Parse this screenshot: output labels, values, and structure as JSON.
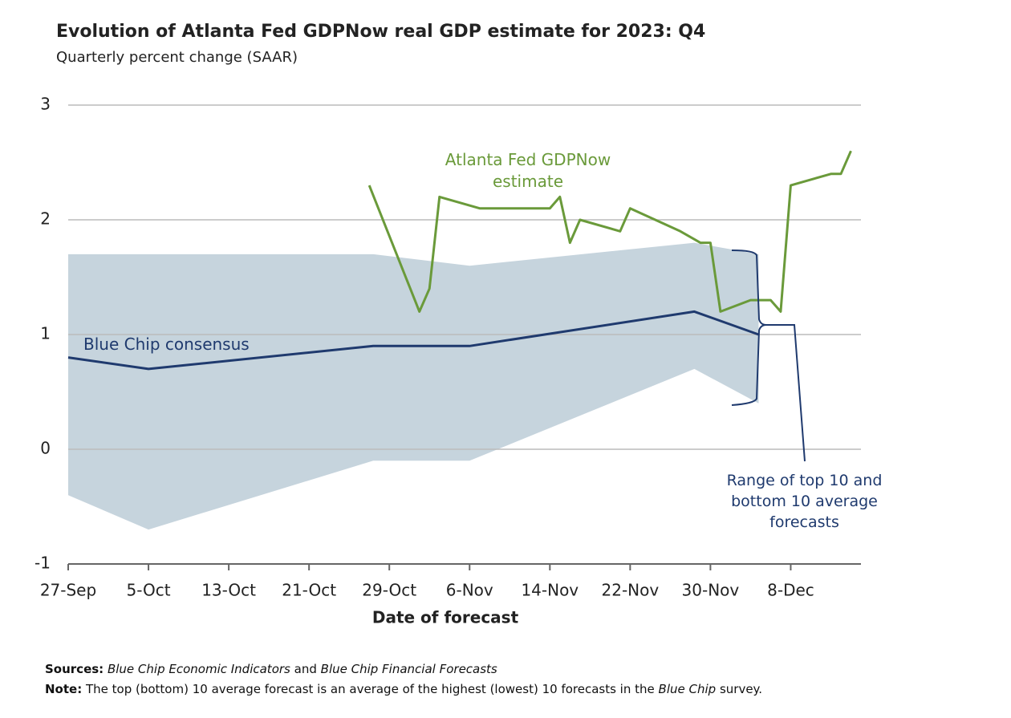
{
  "chart_data": {
    "type": "line",
    "title": "Evolution of Atlanta Fed GDPNow real GDP estimate for 2023: Q4",
    "subtitle": "Quarterly percent change (SAAR)",
    "x_label": "Date of forecast",
    "xlim": [
      0,
      79
    ],
    "xticks": [
      {
        "value": 0,
        "label": "27-Sep"
      },
      {
        "value": 8,
        "label": "5-Oct"
      },
      {
        "value": 16,
        "label": "13-Oct"
      },
      {
        "value": 24,
        "label": "21-Oct"
      },
      {
        "value": 32,
        "label": "29-Oct"
      },
      {
        "value": 40,
        "label": "6-Nov"
      },
      {
        "value": 48,
        "label": "14-Nov"
      },
      {
        "value": 56,
        "label": "22-Nov"
      },
      {
        "value": 64,
        "label": "30-Nov"
      },
      {
        "value": 72,
        "label": "8-Dec"
      }
    ],
    "ylim": [
      -1,
      3
    ],
    "yticks": [
      -1,
      0,
      1,
      2,
      3
    ],
    "grid": true,
    "band": {
      "name": "Range of top 10 and bottom 10 average forecasts",
      "color": "#c6d4dd",
      "x": [
        0,
        8,
        30.4,
        40,
        62.4,
        68.8
      ],
      "upper": [
        1.7,
        1.7,
        1.7,
        1.6,
        1.8,
        1.7
      ],
      "lower": [
        -0.4,
        -0.7,
        -0.1,
        -0.1,
        0.7,
        0.4
      ]
    },
    "series": [
      {
        "name": "Blue Chip consensus",
        "color": "#1f3a6e",
        "x": [
          0,
          8,
          30.4,
          40,
          62.4,
          68.8
        ],
        "values": [
          0.8,
          0.7,
          0.9,
          0.9,
          1.2,
          1.0
        ]
      },
      {
        "name": "Atlanta Fed GDPNow estimate",
        "color": "#6a9a3a",
        "x": [
          30,
          35,
          36,
          37,
          41,
          48,
          49,
          50,
          51,
          55,
          56,
          61,
          63,
          64,
          65,
          68,
          70,
          71,
          72,
          76,
          77,
          78
        ],
        "values": [
          2.3,
          1.2,
          1.4,
          2.2,
          2.1,
          2.1,
          2.2,
          1.8,
          2.0,
          1.9,
          2.1,
          1.9,
          1.8,
          1.8,
          1.2,
          1.3,
          1.3,
          1.2,
          2.3,
          2.4,
          2.4,
          2.6
        ]
      }
    ],
    "footnotes": {
      "sources_label": "Sources:",
      "sources": [
        "Blue Chip Economic Indicators",
        "and",
        "Blue Chip Financial Forecasts"
      ],
      "note_label": "Note:",
      "note": [
        "The top (bottom) 10 average forecast is an average of the highest (lowest) 10 forecasts in the",
        "Blue Chip",
        "survey."
      ]
    }
  }
}
